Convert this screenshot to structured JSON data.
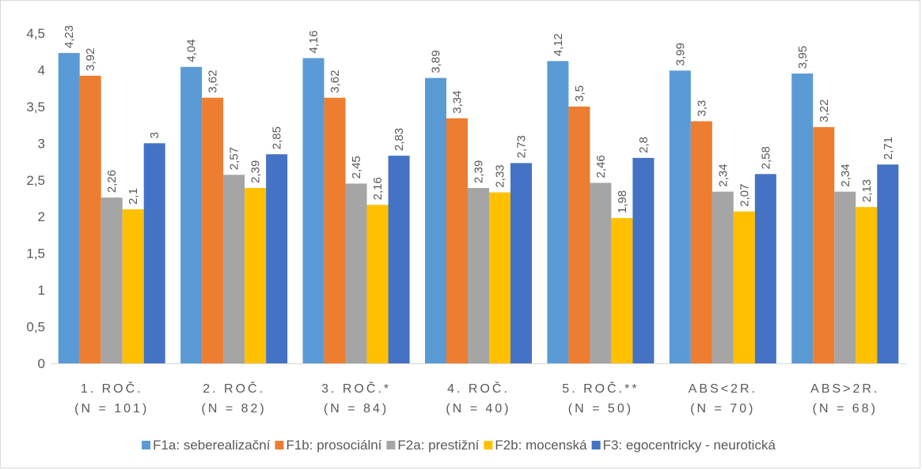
{
  "chart_data": {
    "type": "bar",
    "categories": [
      [
        "1. ROČ.",
        "(N = 101)"
      ],
      [
        "2. ROČ.",
        "(N = 82)"
      ],
      [
        "3. ROČ.*",
        "(N = 84)"
      ],
      [
        "4. ROČ.",
        "(N = 40)"
      ],
      [
        "5. ROČ.**",
        "(N = 50)"
      ],
      [
        "ABS<2R.",
        "(N = 70)"
      ],
      [
        "ABS>2R.",
        "(N = 68)"
      ]
    ],
    "series": [
      {
        "name": "F1a: seberealizační",
        "color": "#5B9BD5",
        "values": [
          4.23,
          4.04,
          4.16,
          3.89,
          4.12,
          3.99,
          3.95
        ],
        "labels": [
          "4,23",
          "4,04",
          "4,16",
          "3,89",
          "4,12",
          "3,99",
          "3,95"
        ]
      },
      {
        "name": "F1b: prosociální",
        "color": "#ED7D31",
        "values": [
          3.92,
          3.62,
          3.62,
          3.34,
          3.5,
          3.3,
          3.22
        ],
        "labels": [
          "3,92",
          "3,62",
          "3,62",
          "3,34",
          "3,5",
          "3,3",
          "3,22"
        ]
      },
      {
        "name": "F2a: prestižní",
        "color": "#A5A5A5",
        "values": [
          2.26,
          2.57,
          2.45,
          2.39,
          2.46,
          2.34,
          2.34
        ],
        "labels": [
          "2,26",
          "2,57",
          "2,45",
          "2,39",
          "2,46",
          "2,34",
          "2,34"
        ]
      },
      {
        "name": "F2b: mocenská",
        "color": "#FFC000",
        "values": [
          2.1,
          2.39,
          2.16,
          2.33,
          1.98,
          2.07,
          2.13
        ],
        "labels": [
          "2,1",
          "2,39",
          "2,16",
          "2,33",
          "1,98",
          "2,07",
          "2,13"
        ]
      },
      {
        "name": "F3: egocentricky - neurotická",
        "color": "#4472C4",
        "values": [
          3,
          2.85,
          2.83,
          2.73,
          2.8,
          2.58,
          2.71
        ],
        "labels": [
          "3",
          "2,85",
          "2,83",
          "2,73",
          "2,8",
          "2,58",
          "2,71"
        ]
      }
    ],
    "yticks": [
      "0",
      "0,5",
      "1",
      "1,5",
      "2",
      "2,5",
      "3",
      "3,5",
      "4",
      "4,5"
    ],
    "ylim": [
      0,
      4.5
    ],
    "grid": false,
    "legend": "bottom",
    "title": "",
    "xlabel": "",
    "ylabel": ""
  }
}
